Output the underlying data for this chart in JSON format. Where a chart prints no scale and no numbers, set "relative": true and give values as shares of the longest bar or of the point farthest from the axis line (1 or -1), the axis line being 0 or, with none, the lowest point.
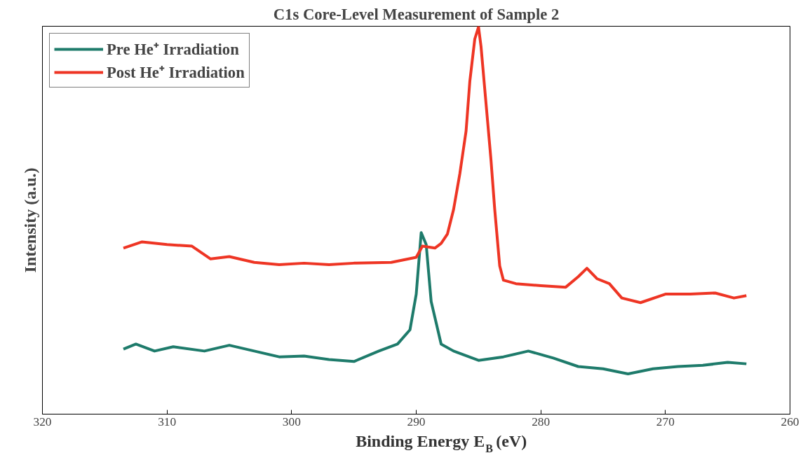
{
  "chart_data": {
    "type": "line",
    "title": "C1s Core-Level Measurement of Sample 2",
    "xlabel": "Binding Energy E$_{B}$ (eV)",
    "ylabel": "Intensity (a.u.)",
    "relative": true,
    "xlim": [
      320,
      260
    ],
    "xticks": [
      320,
      310,
      300,
      290,
      280,
      270,
      260
    ],
    "tick_labels": "x",
    "grid": false,
    "legend": "top left",
    "line_style": "solid",
    "marker": "none",
    "series": [
      {
        "name": "Pre He⁺ Irradiation",
        "color": "#1e7b6b",
        "x": [
          313.5,
          312.5,
          311,
          309.5,
          307,
          305,
          303,
          301,
          299,
          297,
          295,
          293,
          291.5,
          290.5,
          290,
          289.6,
          289.2,
          288.8,
          288.4,
          288,
          287,
          285,
          283,
          281,
          279,
          277,
          275,
          273,
          271,
          269,
          267,
          265,
          263.5
        ],
        "values": [
          0.168,
          0.181,
          0.163,
          0.174,
          0.163,
          0.178,
          0.163,
          0.148,
          0.15,
          0.141,
          0.136,
          0.163,
          0.181,
          0.218,
          0.31,
          0.469,
          0.438,
          0.291,
          0.236,
          0.181,
          0.163,
          0.139,
          0.148,
          0.163,
          0.145,
          0.123,
          0.117,
          0.104,
          0.117,
          0.123,
          0.126,
          0.134,
          0.13
        ]
      },
      {
        "name": "Post He⁺ Irradiation",
        "color": "#ee3524",
        "x": [
          313.5,
          312,
          310,
          308,
          306.5,
          305,
          303,
          301,
          299,
          297,
          295,
          292,
          290,
          289.5,
          288.5,
          288,
          287.5,
          287,
          286.5,
          286,
          285.7,
          285.3,
          285,
          284.8,
          284.5,
          284,
          283.7,
          283.3,
          283,
          282,
          280,
          278,
          277,
          276.3,
          275.5,
          274.5,
          273.5,
          272,
          270,
          268,
          266,
          264.5,
          263.5
        ],
        "values": [
          0.429,
          0.445,
          0.438,
          0.434,
          0.401,
          0.407,
          0.392,
          0.386,
          0.39,
          0.386,
          0.39,
          0.392,
          0.405,
          0.434,
          0.429,
          0.441,
          0.465,
          0.529,
          0.621,
          0.731,
          0.859,
          0.969,
          1.0,
          0.95,
          0.84,
          0.657,
          0.529,
          0.383,
          0.346,
          0.337,
          0.332,
          0.328,
          0.355,
          0.377,
          0.35,
          0.337,
          0.3,
          0.288,
          0.31,
          0.31,
          0.313,
          0.3,
          0.306
        ]
      }
    ]
  }
}
